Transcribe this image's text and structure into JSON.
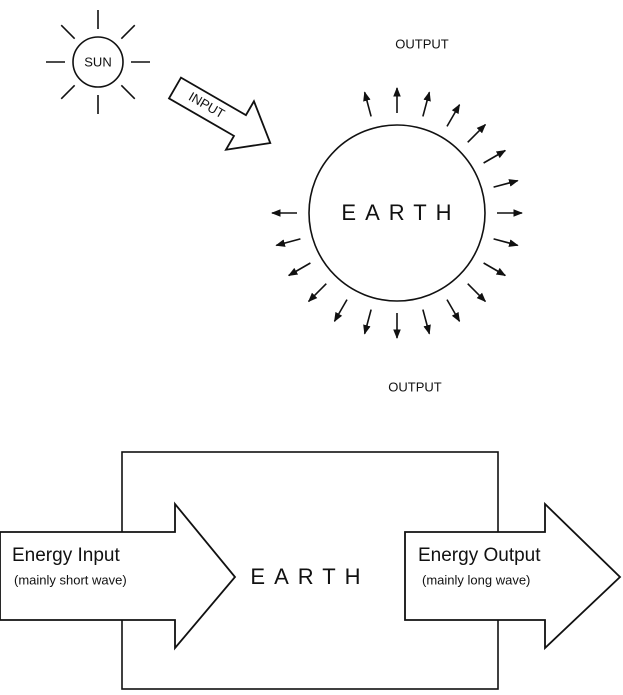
{
  "top": {
    "sun": "SUN",
    "input": "INPUT",
    "earth": "EARTH",
    "output_top": "OUTPUT",
    "output_bottom": "OUTPUT"
  },
  "bottom": {
    "earth": "EARTH",
    "input_title": "Energy Input",
    "input_note": "(mainly short wave)",
    "output_title": "Energy Output",
    "output_note": "(mainly long wave)"
  }
}
